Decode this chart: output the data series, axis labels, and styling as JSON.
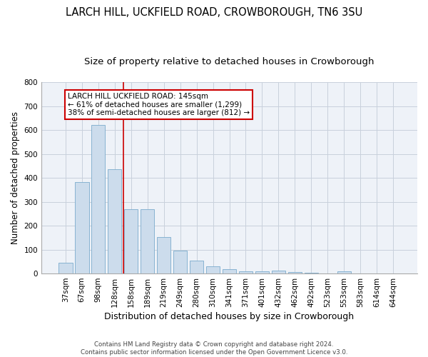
{
  "title": "LARCH HILL, UCKFIELD ROAD, CROWBOROUGH, TN6 3SU",
  "subtitle": "Size of property relative to detached houses in Crowborough",
  "xlabel": "Distribution of detached houses by size in Crowborough",
  "ylabel": "Number of detached properties",
  "categories": [
    "37sqm",
    "67sqm",
    "98sqm",
    "128sqm",
    "158sqm",
    "189sqm",
    "219sqm",
    "249sqm",
    "280sqm",
    "310sqm",
    "341sqm",
    "371sqm",
    "401sqm",
    "432sqm",
    "462sqm",
    "492sqm",
    "523sqm",
    "553sqm",
    "583sqm",
    "614sqm",
    "644sqm"
  ],
  "values": [
    46,
    382,
    622,
    437,
    270,
    270,
    153,
    97,
    54,
    31,
    18,
    10,
    10,
    12,
    5,
    2,
    0,
    10,
    0,
    0,
    0
  ],
  "bar_color": "#ccdcec",
  "bar_edge_color": "#7aabcc",
  "annotation_text": "LARCH HILL UCKFIELD ROAD: 145sqm\n← 61% of detached houses are smaller (1,299)\n38% of semi-detached houses are larger (812) →",
  "annotation_box_color": "#ffffff",
  "annotation_box_edge_color": "#cc0000",
  "vline_color": "#cc0000",
  "vline_x": 3.55,
  "ylim": [
    0,
    800
  ],
  "yticks": [
    0,
    100,
    200,
    300,
    400,
    500,
    600,
    700,
    800
  ],
  "title_fontsize": 10.5,
  "subtitle_fontsize": 9.5,
  "xlabel_fontsize": 9,
  "ylabel_fontsize": 8.5,
  "tick_fontsize": 7.5,
  "footer_line1": "Contains HM Land Registry data © Crown copyright and database right 2024.",
  "footer_line2": "Contains public sector information licensed under the Open Government Licence v3.0.",
  "bg_color": "#eef2f8",
  "grid_color": "#c8d0dc"
}
